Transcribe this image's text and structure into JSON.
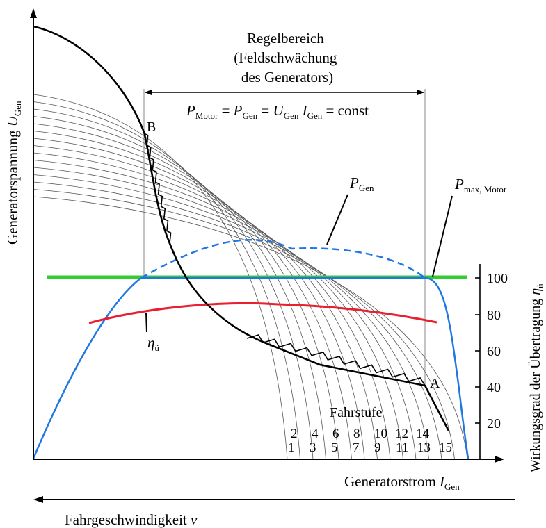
{
  "labels": {
    "y_axis_left": "Generatorspannung",
    "y_axis_left_sub": "Gen",
    "y_axis_left_symbol": "U",
    "x_axis": "Generatorstrom",
    "x_axis_symbol": "I",
    "x_axis_sub": "Gen",
    "speed_axis": "Fahrgeschwindigkeit",
    "speed_symbol": "v",
    "y_axis_right": "Wirkungsgrad der Übertragung",
    "y_axis_right_symbol": "η",
    "y_axis_right_sub": "ü",
    "regelbereich_line1": "Regelbereich",
    "regelbereich_line2": "(Feldschwächung",
    "regelbereich_line3": "des Generators)",
    "formula": {
      "p1": "P",
      "p1_sub": "Motor",
      "eq1": " = ",
      "p2": "P",
      "p2_sub": "Gen",
      "eq2": " = ",
      "u": "U",
      "u_sub": "Gen",
      "i": " I",
      "i_sub": "Gen",
      "tail": " = const"
    },
    "p_gen": "P",
    "p_gen_sub": "Gen",
    "p_max": "P",
    "p_max_sub": "max, Motor",
    "eta": "η",
    "eta_sub": "ü",
    "point_a": "A",
    "point_b": "B",
    "fahrstufe": "Fahrstufe"
  },
  "right_axis_ticks": [
    "100",
    "80",
    "60",
    "40",
    "20"
  ],
  "fahrstufen_even": [
    "2",
    "4",
    "6",
    "8",
    "10",
    "12",
    "14"
  ],
  "fahrstufen_odd": [
    "1",
    "3",
    "5",
    "7",
    "9",
    "11",
    "13",
    "15"
  ],
  "colors": {
    "p_max_line": "#33cc33",
    "blue_power": "#1f77e6",
    "eta_curve": "#e8202f",
    "axes": "#000000",
    "family_curves": "#555555"
  }
}
